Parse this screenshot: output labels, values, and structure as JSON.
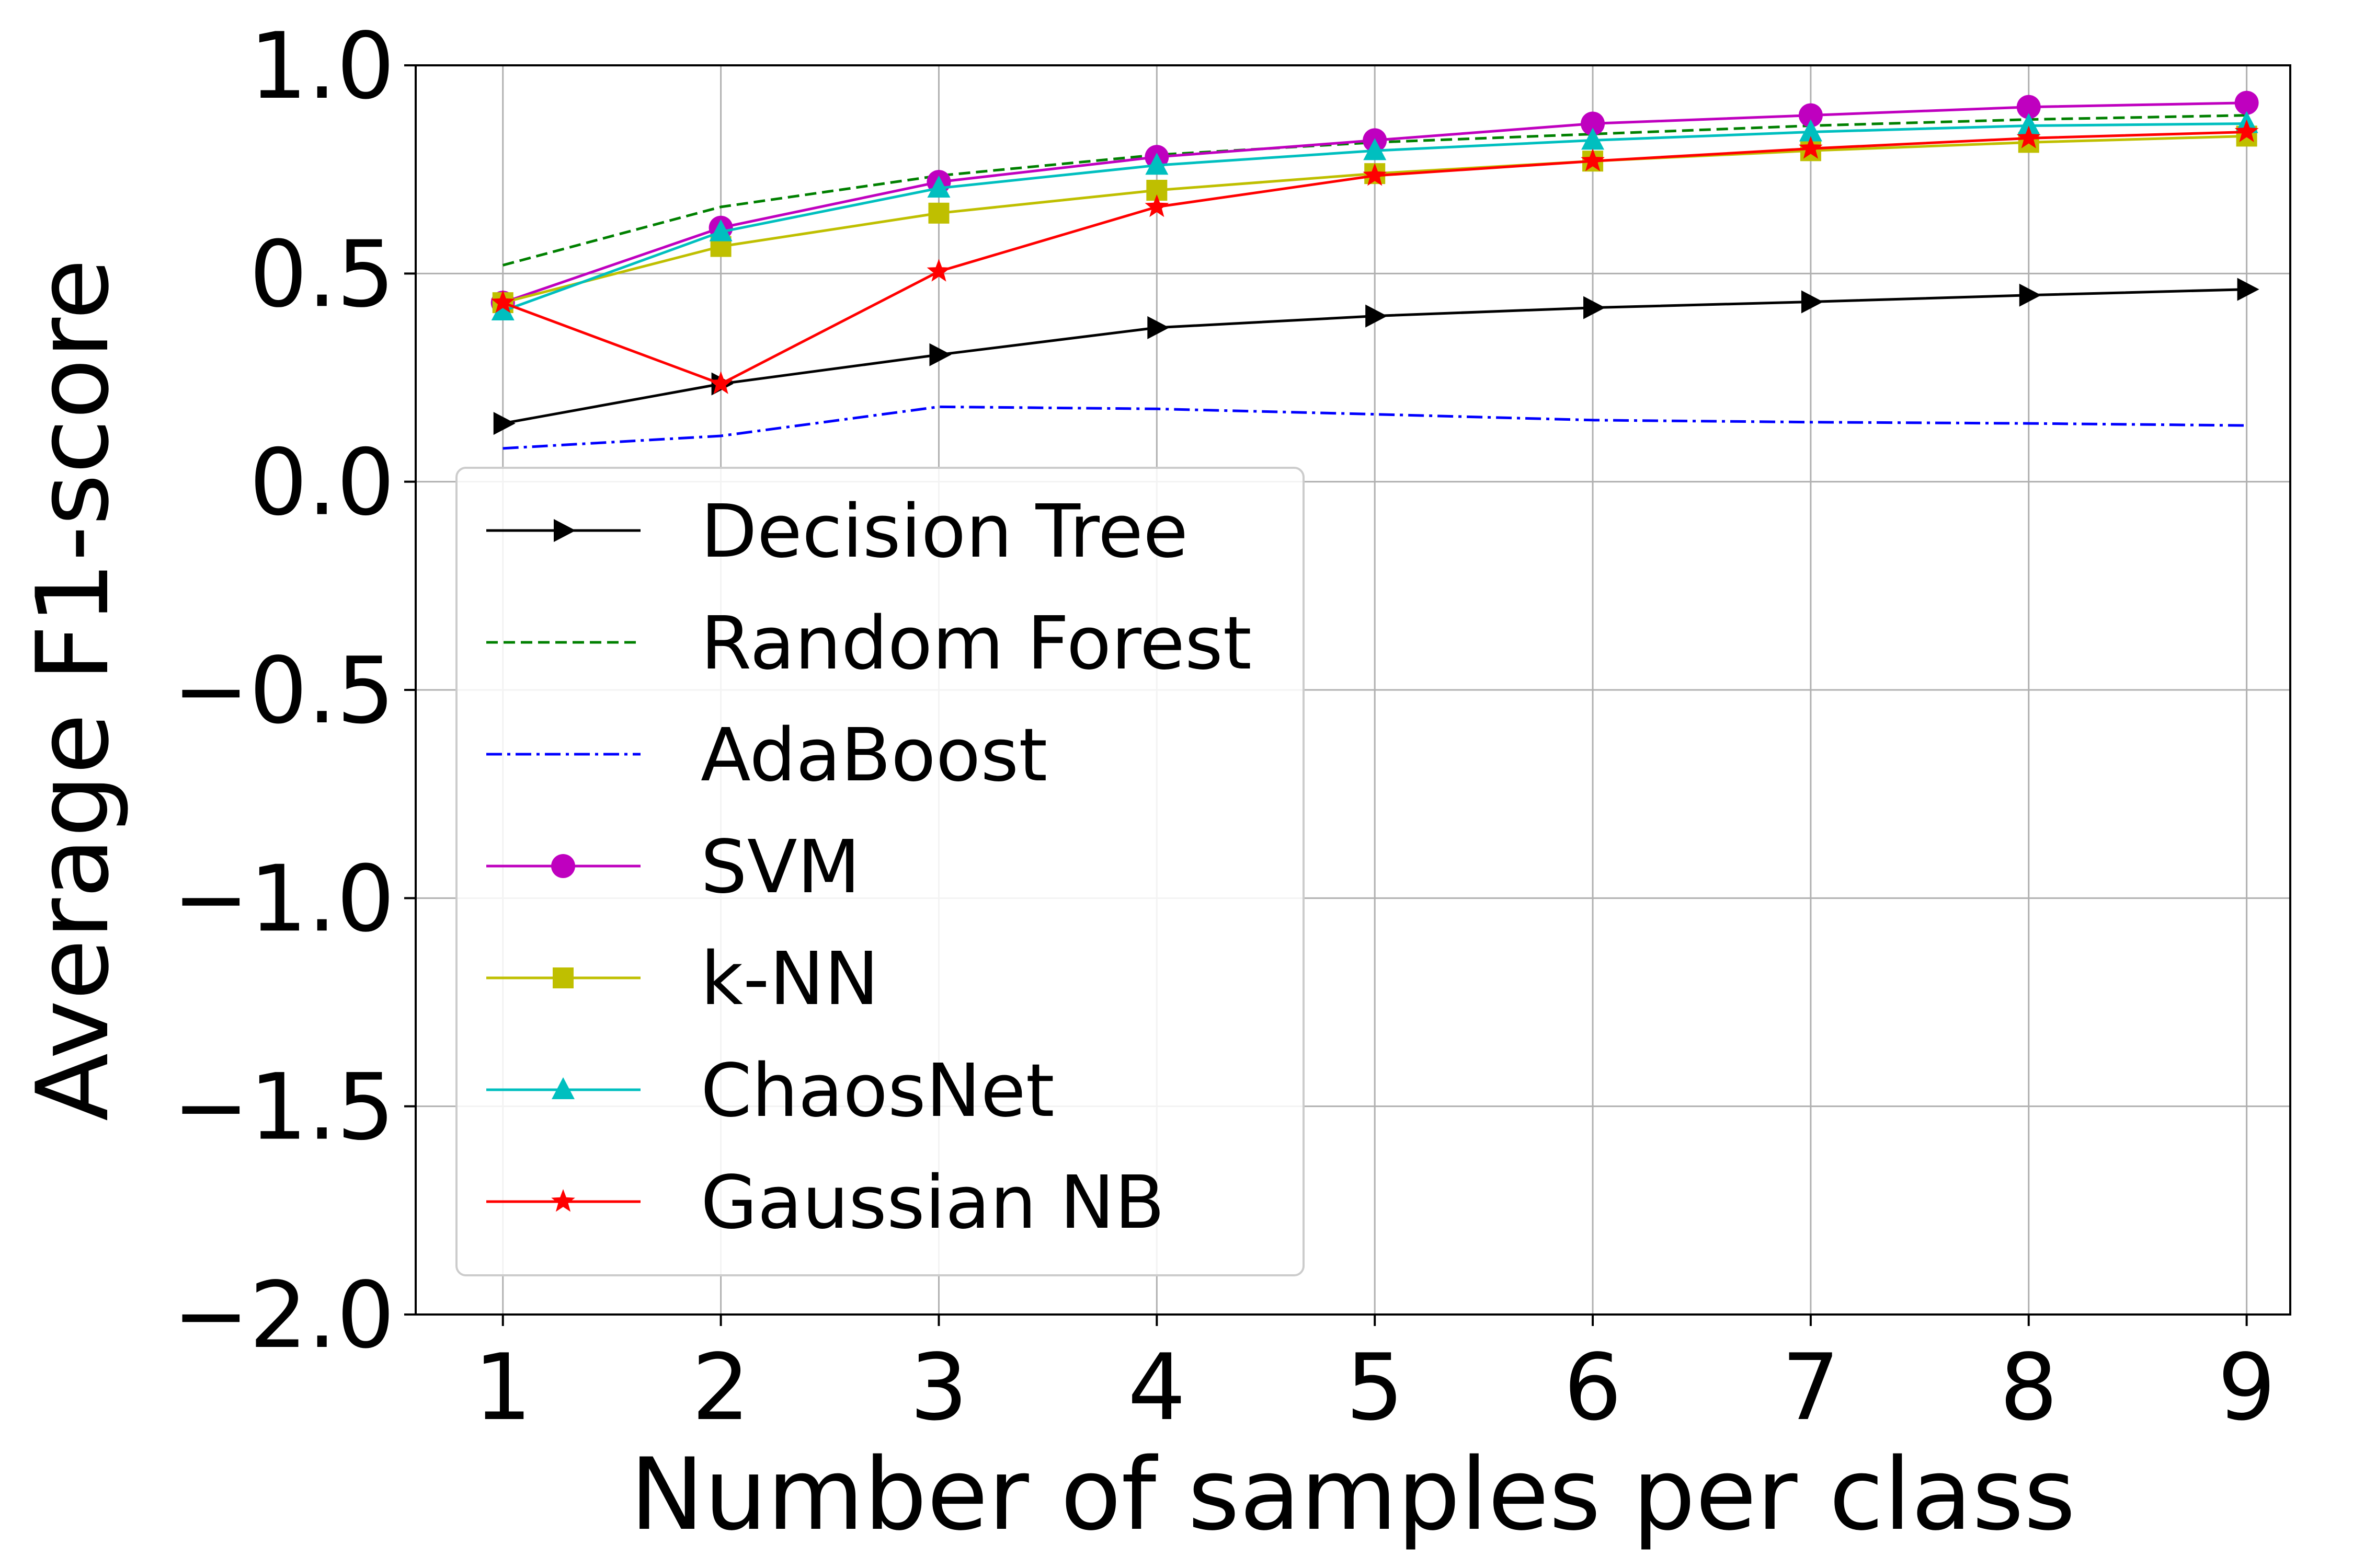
{
  "chart_data": {
    "type": "line",
    "title": "",
    "xlabel": "Number of samples per class",
    "ylabel": "Average F1-score",
    "x": [
      1,
      2,
      3,
      4,
      5,
      6,
      7,
      8,
      9
    ],
    "xlim": [
      0.6,
      9.2
    ],
    "ylim": [
      -2.0,
      1.0
    ],
    "xticks": [
      "1",
      "2",
      "3",
      "4",
      "5",
      "6",
      "7",
      "8",
      "9"
    ],
    "yticks": [
      "−2.0",
      "−1.5",
      "−1.0",
      "−0.5",
      "0.0",
      "0.5",
      "1.0"
    ],
    "ytick_values": [
      -2.0,
      -1.5,
      -1.0,
      -0.5,
      0.0,
      0.5,
      1.0
    ],
    "grid": true,
    "legend_position": "lower-left",
    "series": [
      {
        "name": "Decision Tree",
        "color": "#000000",
        "dash": "solid",
        "marker": "triangle-right",
        "values": [
          0.14,
          0.235,
          0.305,
          0.37,
          0.398,
          0.418,
          0.432,
          0.448,
          0.462
        ]
      },
      {
        "name": "Random Forest",
        "color": "#008000",
        "dash": "dashed",
        "marker": "none",
        "values": [
          0.52,
          0.66,
          0.735,
          0.785,
          0.815,
          0.835,
          0.855,
          0.87,
          0.88
        ]
      },
      {
        "name": "AdaBoost",
        "color": "#0000ff",
        "dash": "dashdot",
        "marker": "none",
        "values": [
          0.08,
          0.11,
          0.18,
          0.175,
          0.162,
          0.148,
          0.143,
          0.14,
          0.135
        ]
      },
      {
        "name": "SVM",
        "color": "#bf00bf",
        "dash": "solid",
        "marker": "circle",
        "values": [
          0.43,
          0.61,
          0.72,
          0.78,
          0.82,
          0.86,
          0.88,
          0.9,
          0.91
        ]
      },
      {
        "name": "k-NN",
        "color": "#bfbf00",
        "dash": "solid",
        "marker": "square",
        "values": [
          0.43,
          0.565,
          0.645,
          0.7,
          0.74,
          0.77,
          0.795,
          0.815,
          0.83
        ]
      },
      {
        "name": "ChaosNet",
        "color": "#00bfbf",
        "dash": "solid",
        "marker": "triangle-up",
        "values": [
          0.41,
          0.6,
          0.705,
          0.76,
          0.795,
          0.82,
          0.84,
          0.855,
          0.86
        ]
      },
      {
        "name": "Gaussian NB",
        "color": "#ff0000",
        "dash": "solid",
        "marker": "star",
        "values": [
          0.43,
          0.235,
          0.505,
          0.66,
          0.735,
          0.77,
          0.8,
          0.825,
          0.84
        ]
      }
    ]
  }
}
